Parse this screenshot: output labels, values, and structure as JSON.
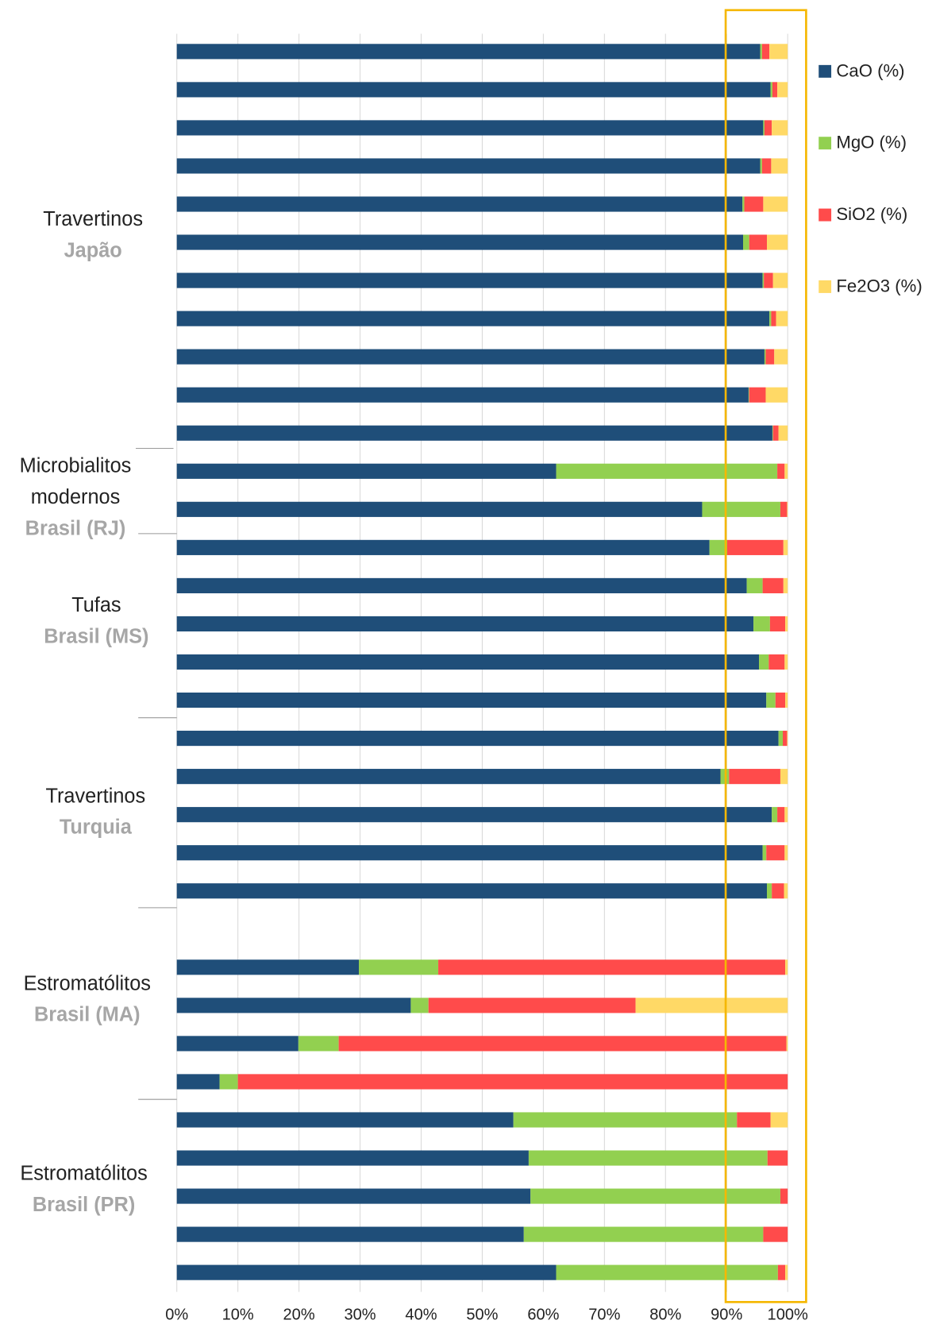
{
  "chart_data": {
    "type": "stacked_barh",
    "categories": [
      null,
      null,
      null,
      null,
      null,
      null,
      null,
      null,
      null,
      null,
      null,
      null,
      null,
      null,
      null,
      null,
      null,
      null,
      null,
      null,
      null,
      null,
      null,
      null,
      null,
      null,
      null,
      null,
      null,
      null,
      null,
      null,
      null
    ],
    "series": [
      {
        "name": "CaO (%)",
        "color": "#1f4e79",
        "values": [
          95.5,
          97.2,
          96.0,
          95.5,
          92.6,
          92.7,
          95.9,
          97.0,
          96.2,
          93.6,
          97.5,
          62.1,
          86.0,
          87.2,
          93.3,
          94.4,
          95.3,
          96.5,
          98.5,
          89.0,
          97.4,
          95.9,
          96.6,
          null,
          29.8,
          38.3,
          19.9,
          7.0,
          55.1,
          57.6,
          57.9,
          56.8,
          62.1
        ]
      },
      {
        "name": "MgO (%)",
        "color": "#92d050",
        "values": [
          0.3,
          0.3,
          0.2,
          0.3,
          0.3,
          1.0,
          0.2,
          0.3,
          0.2,
          0.1,
          0.1,
          36.2,
          12.8,
          2.9,
          2.6,
          2.7,
          1.6,
          1.5,
          0.7,
          1.4,
          0.9,
          0.6,
          0.8,
          null,
          13.0,
          2.9,
          6.6,
          3.0,
          36.6,
          39.1,
          40.9,
          39.2,
          36.3
        ]
      },
      {
        "name": "SiO2 (%)",
        "color": "#ff4b4b",
        "values": [
          1.2,
          0.8,
          1.2,
          1.5,
          3.1,
          2.9,
          1.5,
          0.8,
          1.4,
          2.7,
          0.9,
          1.2,
          1.1,
          9.2,
          3.4,
          2.5,
          2.6,
          1.6,
          0.7,
          8.4,
          1.2,
          3.0,
          2.0,
          null,
          56.8,
          33.9,
          73.3,
          90.0,
          5.5,
          3.3,
          1.2,
          4.0,
          1.2
        ]
      },
      {
        "name": "Fe2O3 (%)",
        "color": "#ffd966",
        "values": [
          3.0,
          1.7,
          2.6,
          2.7,
          4.0,
          3.4,
          2.4,
          1.9,
          2.2,
          3.6,
          1.5,
          0.5,
          0.1,
          0.7,
          0.7,
          0.4,
          0.5,
          0.4,
          0.1,
          1.2,
          0.5,
          0.5,
          0.6,
          null,
          0.4,
          24.9,
          0.2,
          0,
          2.8,
          0,
          0,
          0,
          0.4
        ]
      }
    ],
    "xlim": [
      0,
      100
    ],
    "xticks": [
      {
        "value": 0,
        "label": "0%"
      },
      {
        "value": 10,
        "label": "10%"
      },
      {
        "value": 20,
        "label": "20%"
      },
      {
        "value": 30,
        "label": "30%"
      },
      {
        "value": 40,
        "label": "40%"
      },
      {
        "value": 50,
        "label": "50%"
      },
      {
        "value": 60,
        "label": "60%"
      },
      {
        "value": 70,
        "label": "70%"
      },
      {
        "value": 80,
        "label": "80%"
      },
      {
        "value": 90,
        "label": "90%"
      },
      {
        "value": 100,
        "label": "100%"
      }
    ],
    "grid": true,
    "legend": "right",
    "groups": [
      {
        "label": [
          "Travertinos"
        ],
        "sublabel": "Japão"
      },
      {
        "label": [
          "Microbialitos",
          "modernos"
        ],
        "sublabel": "Brasil (RJ)"
      },
      {
        "label": [
          "Tufas"
        ],
        "sublabel": "Brasil (MS)"
      },
      {
        "label": [
          "Travertinos"
        ],
        "sublabel": "Turquia"
      },
      {
        "label": [
          "Estromatólitos"
        ],
        "sublabel": "Brasil (MA)"
      },
      {
        "label": [
          "Estromatólitos"
        ],
        "sublabel": "Brasil (PR)"
      }
    ]
  }
}
